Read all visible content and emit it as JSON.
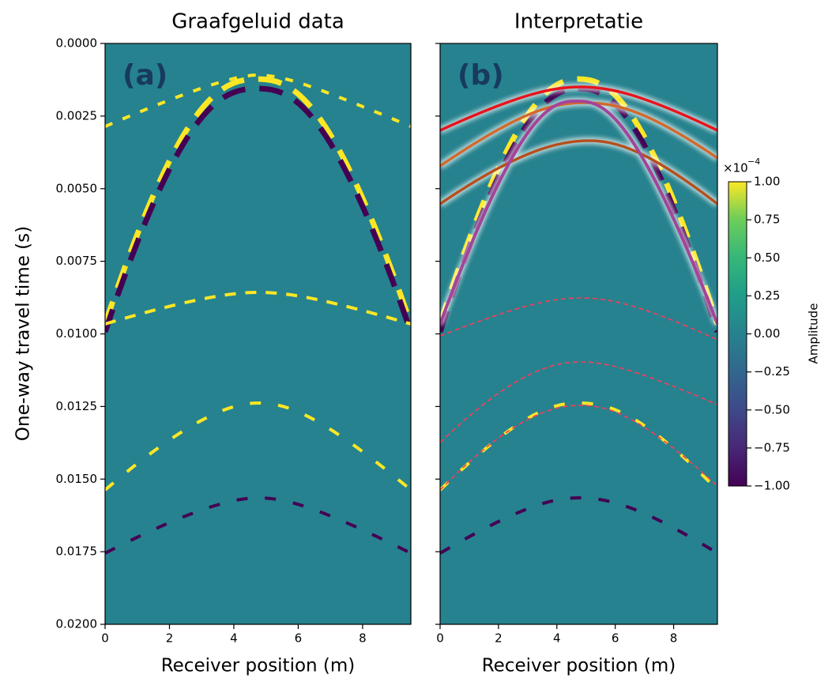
{
  "chart_data": [
    {
      "type": "heatmap",
      "title": "Graafgeluid data",
      "panel_label": "(a)",
      "xlabel": "Receiver position (m)",
      "ylabel": "One-way travel time (s)",
      "xlim": [
        0,
        9.5
      ],
      "xticks": [
        0,
        2,
        4,
        6,
        8
      ],
      "ylim": [
        0.02,
        0
      ],
      "yticks": [
        {
          "value": 0,
          "label": "0.0000"
        },
        {
          "value": 0.0025,
          "label": "0.0025"
        },
        {
          "value": 0.005,
          "label": "0.0050"
        },
        {
          "value": 0.0075,
          "label": "0.0075"
        },
        {
          "value": 0.01,
          "label": "0.0100"
        },
        {
          "value": 0.0125,
          "label": "0.0125"
        },
        {
          "value": 0.015,
          "label": "0.0150"
        },
        {
          "value": 0.0175,
          "label": "0.0175"
        },
        {
          "value": 0.02,
          "label": "0.0200"
        }
      ]
    },
    {
      "type": "heatmap",
      "title": "Interpretatie",
      "panel_label": "(b)",
      "xlabel": "Receiver position (m)",
      "xlim": [
        0,
        9.5
      ],
      "xticks": [
        0,
        2,
        4,
        6,
        8
      ],
      "ylim": [
        0.02,
        0
      ]
    }
  ],
  "colorbar": {
    "label": "Amplitude",
    "multiplier": "×10",
    "multiplier_exponent": "−4",
    "lim": [
      -1,
      1
    ],
    "ticks": [
      {
        "value": 1,
        "label": "1.00"
      },
      {
        "value": 0.75,
        "label": "0.75"
      },
      {
        "value": 0.5,
        "label": "0.50"
      },
      {
        "value": 0.25,
        "label": "0.25"
      },
      {
        "value": 0,
        "label": "0.00"
      },
      {
        "value": -0.25,
        "label": "−0.25"
      },
      {
        "value": -0.5,
        "label": "−0.50"
      },
      {
        "value": -0.75,
        "label": "−0.75"
      },
      {
        "value": -1,
        "label": "−1.00"
      }
    ]
  }
}
